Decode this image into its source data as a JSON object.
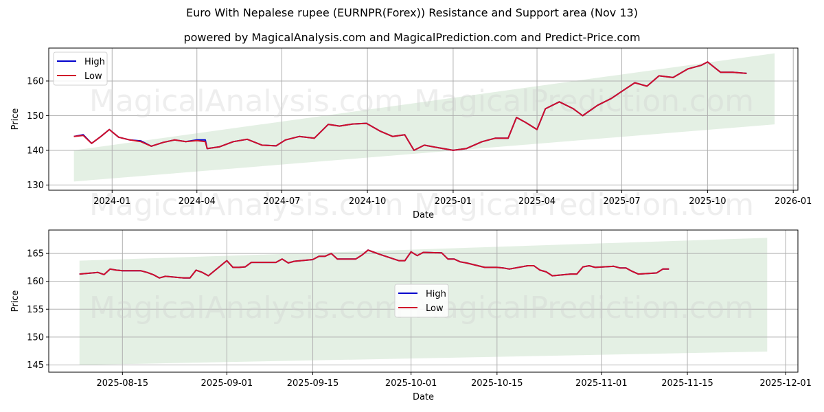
{
  "header": {
    "title": "Euro With Nepalese rupee (EURNPR(Forex)) Resistance and Support area (Nov 13)",
    "subtitle": "powered by MagicalAnalysis.com and MagicalPrediction.com and Predict-Price.com"
  },
  "watermarks": [
    "MagicalAnalysis.com",
    "MagicalPrediction.com"
  ],
  "colors": {
    "high": "#0000cc",
    "low": "#d0102a",
    "band": "#e3efe3",
    "grid": "#b0b0b0"
  },
  "legend": {
    "high_label": "High",
    "low_label": "Low"
  },
  "chart_data": [
    {
      "type": "line",
      "title": "",
      "xlabel": "Date",
      "ylabel": "Price",
      "ylim": [
        128.5,
        169.5
      ],
      "xlim_dates": [
        "2023-10-25",
        "2026-01-06"
      ],
      "x_ticks": [
        "2024-01",
        "2024-04",
        "2024-07",
        "2024-10",
        "2025-01",
        "2025-04",
        "2025-07",
        "2025-10",
        "2026-01"
      ],
      "y_ticks": [
        130,
        140,
        150,
        160
      ],
      "grid": true,
      "legend_position": "upper left",
      "support_band": {
        "start": "2023-11-21",
        "end": "2025-12-12",
        "lower": [
          131,
          147.5
        ],
        "upper": [
          140,
          168
        ]
      },
      "x": [
        "2023-11-21",
        "2023-12-01",
        "2023-12-10",
        "2023-12-20",
        "2023-12-29",
        "2024-01-08",
        "2024-01-20",
        "2024-02-01",
        "2024-02-12",
        "2024-02-25",
        "2024-03-08",
        "2024-03-20",
        "2024-04-01",
        "2024-04-10",
        "2024-04-12",
        "2024-04-25",
        "2024-05-10",
        "2024-05-25",
        "2024-06-10",
        "2024-06-25",
        "2024-07-05",
        "2024-07-20",
        "2024-08-05",
        "2024-08-20",
        "2024-09-01",
        "2024-09-15",
        "2024-09-30",
        "2024-10-15",
        "2024-10-28",
        "2024-11-10",
        "2024-11-20",
        "2024-12-01",
        "2024-12-15",
        "2025-01-01",
        "2025-01-15",
        "2025-02-01",
        "2025-02-15",
        "2025-03-01",
        "2025-03-10",
        "2025-03-20",
        "2025-04-01",
        "2025-04-10",
        "2025-04-25",
        "2025-05-10",
        "2025-05-20",
        "2025-06-05",
        "2025-06-20",
        "2025-07-01",
        "2025-07-15",
        "2025-07-28",
        "2025-08-10",
        "2025-08-25",
        "2025-09-10",
        "2025-09-24",
        "2025-10-01",
        "2025-10-15",
        "2025-10-28",
        "2025-11-12"
      ],
      "series": [
        {
          "name": "High",
          "values": [
            144,
            144.5,
            142,
            144,
            146,
            143.8,
            143,
            142.7,
            141.2,
            142.3,
            143,
            142.5,
            143,
            143,
            140.5,
            141,
            142.5,
            143.2,
            141.5,
            141.3,
            143,
            144,
            143.5,
            147.5,
            147,
            147.6,
            147.8,
            145.5,
            144,
            144.5,
            140,
            141.5,
            140.8,
            140,
            140.5,
            142.5,
            143.5,
            143.5,
            149.5,
            148,
            146,
            152,
            154,
            152,
            150,
            153,
            155,
            157,
            159.5,
            158.5,
            161.5,
            161,
            163.5,
            164.5,
            165.5,
            162.5,
            162.5,
            162.2
          ]
        },
        {
          "name": "Low",
          "values": [
            144,
            144.3,
            142,
            144,
            146,
            143.8,
            143,
            142.5,
            141.2,
            142.3,
            143,
            142.5,
            142.8,
            142.5,
            140.5,
            141,
            142.5,
            143.2,
            141.5,
            141.3,
            143,
            144,
            143.5,
            147.5,
            147,
            147.6,
            147.8,
            145.5,
            144,
            144.5,
            140,
            141.5,
            140.8,
            140,
            140.5,
            142.5,
            143.5,
            143.5,
            149.5,
            148,
            146,
            152,
            154,
            152,
            150,
            153,
            155,
            157,
            159.5,
            158.5,
            161.5,
            161,
            163.5,
            164.5,
            165.5,
            162.5,
            162.5,
            162.2
          ]
        }
      ]
    },
    {
      "type": "line",
      "title": "",
      "xlabel": "Date",
      "ylabel": "Price",
      "ylim": [
        143.7,
        169.2
      ],
      "xlim_dates": [
        "2025-08-03",
        "2025-12-03"
      ],
      "x_ticks": [
        "2025-08-15",
        "2025-09-01",
        "2025-09-15",
        "2025-10-01",
        "2025-10-15",
        "2025-11-01",
        "2025-11-15",
        "2025-12-01"
      ],
      "y_ticks": [
        145,
        150,
        155,
        160,
        165
      ],
      "grid": true,
      "legend_position": "center",
      "support_band": {
        "start": "2025-08-08",
        "end": "2025-11-28",
        "lower": [
          145,
          147.4
        ],
        "upper": [
          163.7,
          167.8
        ]
      },
      "x": [
        "2025-08-08",
        "2025-08-11",
        "2025-08-12",
        "2025-08-13",
        "2025-08-14",
        "2025-08-15",
        "2025-08-18",
        "2025-08-19",
        "2025-08-20",
        "2025-08-21",
        "2025-08-22",
        "2025-08-25",
        "2025-08-26",
        "2025-08-27",
        "2025-08-28",
        "2025-08-29",
        "2025-09-01",
        "2025-09-02",
        "2025-09-03",
        "2025-09-04",
        "2025-09-05",
        "2025-09-08",
        "2025-09-09",
        "2025-09-10",
        "2025-09-11",
        "2025-09-12",
        "2025-09-15",
        "2025-09-16",
        "2025-09-17",
        "2025-09-18",
        "2025-09-19",
        "2025-09-22",
        "2025-09-23",
        "2025-09-24",
        "2025-09-25",
        "2025-09-26",
        "2025-09-29",
        "2025-09-30",
        "2025-10-01",
        "2025-10-02",
        "2025-10-03",
        "2025-10-06",
        "2025-10-07",
        "2025-10-08",
        "2025-10-09",
        "2025-10-10",
        "2025-10-13",
        "2025-10-14",
        "2025-10-15",
        "2025-10-16",
        "2025-10-17",
        "2025-10-20",
        "2025-10-21",
        "2025-10-22",
        "2025-10-23",
        "2025-10-24",
        "2025-10-27",
        "2025-10-28",
        "2025-10-29",
        "2025-10-30",
        "2025-10-31",
        "2025-11-03",
        "2025-11-04",
        "2025-11-05",
        "2025-11-06",
        "2025-11-07",
        "2025-11-10",
        "2025-11-11",
        "2025-11-12"
      ],
      "series": [
        {
          "name": "High",
          "values": [
            161.3,
            161.6,
            161.2,
            162.2,
            162.0,
            161.9,
            161.9,
            161.6,
            161.2,
            160.6,
            160.9,
            160.6,
            160.6,
            162.0,
            161.6,
            161.0,
            163.7,
            162.5,
            162.5,
            162.6,
            163.4,
            163.4,
            163.4,
            164.0,
            163.3,
            163.6,
            163.9,
            164.5,
            164.5,
            165.0,
            164.0,
            164.0,
            164.7,
            165.6,
            165.2,
            164.8,
            163.7,
            163.7,
            165.3,
            164.6,
            165.2,
            165.1,
            164.0,
            164.0,
            163.5,
            163.3,
            162.5,
            162.5,
            162.5,
            162.4,
            162.2,
            162.8,
            162.8,
            162.0,
            161.7,
            161.0,
            161.3,
            161.3,
            162.6,
            162.8,
            162.5,
            162.7,
            162.4,
            162.4,
            161.8,
            161.3,
            161.5,
            162.2,
            162.2
          ]
        },
        {
          "name": "Low",
          "values": [
            161.3,
            161.6,
            161.2,
            162.2,
            162.0,
            161.9,
            161.9,
            161.6,
            161.2,
            160.6,
            160.9,
            160.6,
            160.6,
            162.0,
            161.6,
            161.0,
            163.7,
            162.5,
            162.5,
            162.6,
            163.4,
            163.4,
            163.4,
            164.0,
            163.3,
            163.6,
            163.9,
            164.5,
            164.5,
            165.0,
            164.0,
            164.0,
            164.7,
            165.6,
            165.2,
            164.8,
            163.7,
            163.7,
            165.3,
            164.6,
            165.2,
            165.1,
            164.0,
            164.0,
            163.5,
            163.3,
            162.5,
            162.5,
            162.5,
            162.4,
            162.2,
            162.8,
            162.8,
            162.0,
            161.7,
            161.0,
            161.3,
            161.3,
            162.6,
            162.8,
            162.5,
            162.7,
            162.4,
            162.4,
            161.8,
            161.3,
            161.5,
            162.2,
            162.2
          ]
        }
      ]
    }
  ]
}
